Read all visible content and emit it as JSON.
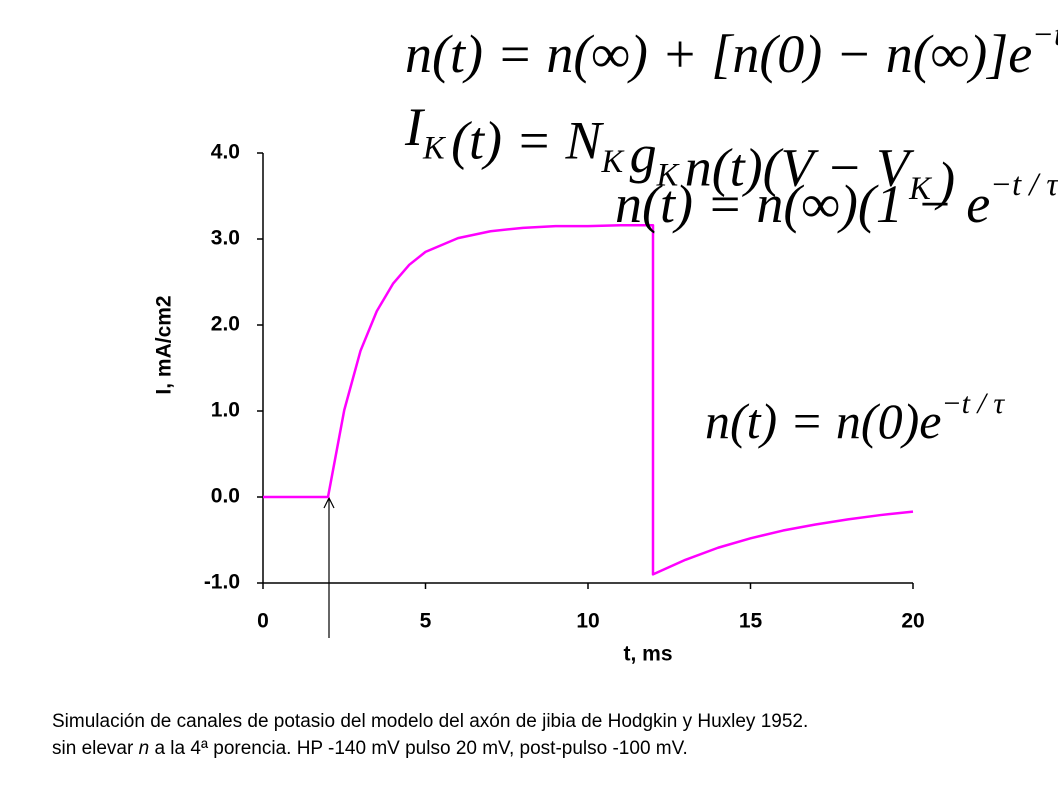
{
  "chart_data": {
    "type": "line",
    "xlabel": "t, ms",
    "ylabel": "I, mA/cm2",
    "x": [
      0,
      2,
      2.5,
      3,
      3.5,
      4,
      4.5,
      5,
      6,
      7,
      8,
      9,
      10,
      11,
      12,
      12,
      13,
      14,
      15,
      16,
      17,
      18,
      19,
      20
    ],
    "series": [
      {
        "color": "#ff00ff",
        "values": [
          0,
          0,
          1.01,
          1.7,
          2.16,
          2.48,
          2.7,
          2.85,
          3.01,
          3.09,
          3.13,
          3.15,
          3.15,
          3.16,
          3.16,
          -0.9,
          -0.73,
          -0.59,
          -0.48,
          -0.39,
          -0.32,
          -0.26,
          -0.21,
          -0.17
        ]
      }
    ],
    "xlim": [
      0,
      20
    ],
    "xticks": [
      0,
      5,
      10,
      15,
      20
    ],
    "ylim": [
      -1,
      4
    ],
    "yticks": [
      {
        "value": -1,
        "label": "-1.0"
      },
      {
        "value": 0,
        "label": "0.0"
      },
      {
        "value": 1,
        "label": "1.0"
      },
      {
        "value": 2,
        "label": "2.0"
      },
      {
        "value": 3,
        "label": "3.0"
      },
      {
        "value": 4,
        "label": "4.0"
      }
    ],
    "grid": false,
    "equations": [
      [
        {
          "base": "n(t) = n(∞) + [n(0) − n(∞)]e",
          "sup": "−t / τ"
        }
      ],
      [
        {
          "base": "I",
          "sub": "K"
        },
        {
          "base": "(t) = N",
          "sub": "K"
        },
        {
          "base": "g",
          "sub": "K"
        },
        {
          "base": "n(t)(V − V",
          "sub": "K"
        },
        {
          "base": ")"
        }
      ],
      [
        {
          "base": "n(t) = n(∞)(1 − e",
          "sup": "−t / τ"
        },
        {
          "base": ")"
        }
      ],
      [
        {
          "base": "n(t) = n(0)e",
          "sup": "−t / τ"
        }
      ]
    ]
  },
  "caption": {
    "line1": "Simulación de canales de potasio del modelo del axón de jibia de Hodgkin y Huxley 1952.",
    "line2": [
      "sin elevar ",
      "n",
      " a la 4ª porencia. HP -140 mV pulso 20 mV, post-pulso -100 mV."
    ]
  }
}
